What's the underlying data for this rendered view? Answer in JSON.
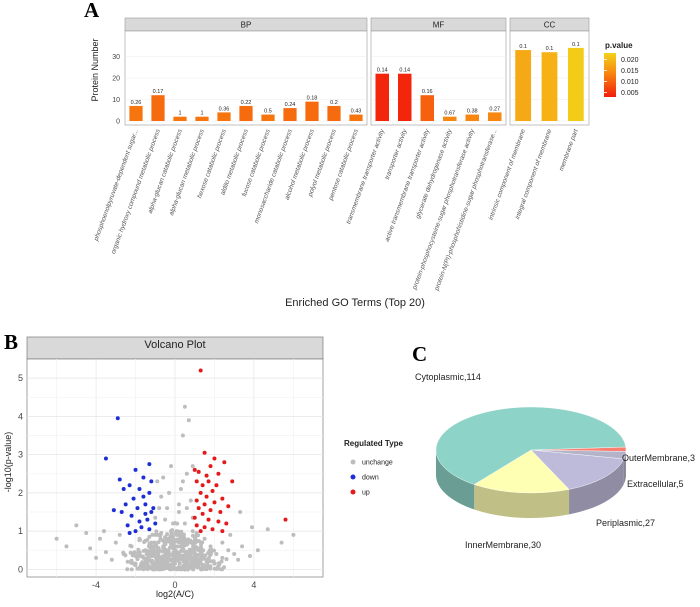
{
  "panel_labels": {
    "a": "A",
    "b": "B",
    "c": "C"
  },
  "chart_data": [
    {
      "type": "bar",
      "title": "",
      "xlabel": "Enriched GO Terms (Top 20)",
      "ylabel": "Protein Number",
      "ylim": [
        0,
        40
      ],
      "yticks": [
        0,
        10,
        20,
        30
      ],
      "facets": [
        {
          "name": "BP",
          "categories": [
            "phosphoenolpyruvate-dependent sugar...",
            "organic hydroxy compound metabolic process",
            "alpha-glucan catabolic process",
            "alpha-glucan metabolic process",
            "hexose catabolic process",
            "aldito metabolic process",
            "fucose catabolic process",
            "monosaccharide catabolic process",
            "alcohol metabolic process",
            "polyol metabolic process",
            "pentose catabolic process"
          ],
          "values": [
            7,
            12,
            2,
            2,
            4,
            7,
            3,
            6,
            9,
            7,
            3
          ],
          "labels": [
            "0.26",
            "0.17",
            "1",
            "1",
            "0.36",
            "0.22",
            "0.5",
            "0.24",
            "0.18",
            "0.2",
            "0.43"
          ],
          "p_values": [
            0.012,
            0.011,
            0.012,
            0.012,
            0.012,
            0.011,
            0.012,
            0.011,
            0.011,
            0.011,
            0.012
          ]
        },
        {
          "name": "MF",
          "categories": [
            "transmembrane transporter activity",
            "transporter activity",
            "active transmembrane transporter activity",
            "glycerate dehydrogenase activity",
            "protein-phosphocysteine-sugar phosphotransferase activity",
            "protein-N(PI)-phosphohistidine-sugar phosphotransferase..."
          ],
          "values": [
            22,
            22,
            12,
            2,
            3,
            4
          ],
          "labels": [
            "0.14",
            "0.14",
            "0.16",
            "0.67",
            "0.38",
            "0.27"
          ],
          "p_values": [
            0.004,
            0.004,
            0.01,
            0.014,
            0.014,
            0.014
          ]
        },
        {
          "name": "CC",
          "categories": [
            "intrinsic component of membrane",
            "integral component of membrane",
            "membrane part"
          ],
          "values": [
            33,
            32,
            34
          ],
          "labels": [
            "0.1",
            "0.1",
            "0.1"
          ],
          "p_values": [
            0.018,
            0.019,
            0.022
          ]
        }
      ],
      "legend": {
        "title": "p.value",
        "ticks": [
          "0.020",
          "0.015",
          "0.010",
          "0.005"
        ],
        "tick_values": [
          0.02,
          0.015,
          0.01,
          0.005
        ],
        "range": [
          0.003,
          0.023
        ],
        "position": "right"
      }
    },
    {
      "type": "scatter",
      "title": "Volcano Plot",
      "xlabel": "log2(A/C)",
      "ylabel": "-log10(p-value)",
      "xlim": [
        -7.5,
        7.5
      ],
      "ylim": [
        -0.2,
        5.5
      ],
      "xticks": [
        "-4",
        "0",
        "4"
      ],
      "xtick_values": [
        -4,
        0,
        4
      ],
      "yticks": [
        "0",
        "1",
        "2",
        "3",
        "4",
        "5"
      ],
      "legend": {
        "title": "Regulated Type",
        "position": "right",
        "entries": [
          {
            "name": "unchange",
            "color": "#bdbdbd"
          },
          {
            "name": "down",
            "color": "#1f2fd6"
          },
          {
            "name": "up",
            "color": "#e31a1c"
          }
        ]
      },
      "series": [
        {
          "name": "down",
          "color": "#1f2fd6",
          "points": [
            [
              -2.9,
              3.95
            ],
            [
              -3.5,
              2.9
            ],
            [
              -1.3,
              2.75
            ],
            [
              -2.8,
              2.35
            ],
            [
              -2.6,
              2.1
            ],
            [
              -2.3,
              2.2
            ],
            [
              -1.8,
              2.1
            ],
            [
              -1.3,
              2.0
            ],
            [
              -2.1,
              1.85
            ],
            [
              -1.6,
              1.9
            ],
            [
              -2.5,
              1.7
            ],
            [
              -1.9,
              1.6
            ],
            [
              -1.5,
              1.7
            ],
            [
              -1.2,
              1.5
            ],
            [
              -2.7,
              1.5
            ],
            [
              -2.2,
              1.4
            ],
            [
              -1.4,
              1.3
            ],
            [
              -1.1,
              1.6
            ],
            [
              -1.0,
              1.2
            ],
            [
              -2.4,
              1.15
            ],
            [
              -1.8,
              1.25
            ],
            [
              -3.1,
              1.55
            ],
            [
              -1.6,
              2.4
            ],
            [
              -2.0,
              2.6
            ],
            [
              -1.2,
              2.3
            ],
            [
              -1.7,
              1.1
            ],
            [
              -1.3,
              1.05
            ],
            [
              -2.0,
              1.0
            ],
            [
              -1.5,
              1.45
            ],
            [
              -2.3,
              0.95
            ]
          ]
        },
        {
          "name": "up",
          "color": "#e31a1c",
          "points": [
            [
              1.3,
              5.2
            ],
            [
              1.5,
              3.05
            ],
            [
              2.0,
              2.9
            ],
            [
              2.5,
              2.8
            ],
            [
              1.8,
              2.7
            ],
            [
              1.2,
              2.55
            ],
            [
              1.6,
              2.45
            ],
            [
              2.2,
              2.5
            ],
            [
              1.1,
              2.3
            ],
            [
              1.4,
              2.2
            ],
            [
              2.1,
              2.2
            ],
            [
              2.9,
              2.3
            ],
            [
              1.9,
              2.05
            ],
            [
              1.3,
              2.0
            ],
            [
              1.6,
              1.9
            ],
            [
              2.4,
              1.85
            ],
            [
              1.1,
              1.8
            ],
            [
              2.0,
              1.75
            ],
            [
              1.5,
              1.7
            ],
            [
              2.7,
              1.65
            ],
            [
              1.2,
              1.6
            ],
            [
              1.8,
              1.55
            ],
            [
              2.3,
              1.5
            ],
            [
              1.4,
              1.45
            ],
            [
              1.0,
              1.35
            ],
            [
              1.7,
              1.3
            ],
            [
              2.2,
              1.25
            ],
            [
              2.6,
              1.2
            ],
            [
              1.1,
              1.15
            ],
            [
              1.5,
              1.1
            ],
            [
              1.9,
              1.05
            ],
            [
              2.4,
              1.0
            ],
            [
              1.3,
              1.0
            ],
            [
              5.6,
              1.3
            ],
            [
              1.0,
              2.6
            ],
            [
              1.7,
              2.3
            ]
          ]
        },
        {
          "name": "unchange",
          "color": "#bdbdbd",
          "points": [
            [
              0.5,
              4.25
            ],
            [
              0.7,
              3.9
            ],
            [
              0.4,
              3.5
            ],
            [
              -0.6,
              2.4
            ],
            [
              -0.3,
              2.0
            ],
            [
              0.3,
              2.1
            ],
            [
              0.9,
              2.7
            ],
            [
              -0.9,
              2.3
            ],
            [
              0.6,
              2.5
            ],
            [
              0.8,
              1.8
            ],
            [
              -0.8,
              1.6
            ],
            [
              -0.5,
              1.3
            ],
            [
              0.2,
              1.5
            ],
            [
              0.5,
              1.2
            ],
            [
              -0.2,
              1.0
            ],
            [
              0.1,
              0.9
            ],
            [
              -0.7,
              0.95
            ],
            [
              0.9,
              1.0
            ],
            [
              3.3,
              1.5
            ],
            [
              3.9,
              1.1
            ],
            [
              4.7,
              1.05
            ],
            [
              -4.5,
              0.95
            ],
            [
              -5.0,
              1.15
            ],
            [
              -5.5,
              0.6
            ],
            [
              -4.3,
              0.55
            ],
            [
              -3.8,
              0.8
            ],
            [
              -3.5,
              0.45
            ],
            [
              -3.0,
              0.7
            ],
            [
              -2.6,
              0.4
            ],
            [
              -2.2,
              0.6
            ],
            [
              -1.8,
              0.8
            ],
            [
              -1.5,
              0.5
            ],
            [
              -1.2,
              0.7
            ],
            [
              -0.9,
              0.5
            ],
            [
              -0.6,
              0.6
            ],
            [
              -0.3,
              0.4
            ],
            [
              0.0,
              0.5
            ],
            [
              0.3,
              0.6
            ],
            [
              0.6,
              0.45
            ],
            [
              0.9,
              0.7
            ],
            [
              1.2,
              0.5
            ],
            [
              1.5,
              0.8
            ],
            [
              1.8,
              0.6
            ],
            [
              2.1,
              0.4
            ],
            [
              2.4,
              0.7
            ],
            [
              2.7,
              0.5
            ],
            [
              3.0,
              0.4
            ],
            [
              3.4,
              0.6
            ],
            [
              3.8,
              0.35
            ],
            [
              4.2,
              0.5
            ],
            [
              -4.0,
              0.3
            ],
            [
              -3.2,
              0.25
            ],
            [
              -2.4,
              0.2
            ],
            [
              -1.6,
              0.3
            ],
            [
              -0.8,
              0.2
            ],
            [
              0.0,
              0.15
            ],
            [
              0.8,
              0.25
            ],
            [
              1.6,
              0.2
            ],
            [
              2.4,
              0.3
            ],
            [
              3.2,
              0.25
            ],
            [
              -1.0,
              0.1
            ],
            [
              -0.5,
              0.05
            ],
            [
              0.5,
              0.08
            ],
            [
              1.0,
              0.12
            ],
            [
              -0.2,
              0.02
            ],
            [
              0.2,
              0.04
            ],
            [
              6.0,
              0.9
            ],
            [
              5.4,
              0.7
            ],
            [
              -6.0,
              0.8
            ],
            [
              -2.0,
              0.15
            ],
            [
              2.0,
              0.15
            ],
            [
              -0.4,
              0.8
            ],
            [
              0.4,
              0.9
            ],
            [
              -1.0,
              0.9
            ],
            [
              1.1,
              0.95
            ],
            [
              -1.3,
              0.85
            ],
            [
              -0.1,
              1.2
            ],
            [
              0.2,
              1.7
            ],
            [
              -0.4,
              1.6
            ],
            [
              0.6,
              1.6
            ],
            [
              -0.7,
              1.9
            ],
            [
              0.4,
              2.3
            ],
            [
              -0.2,
              2.7
            ],
            [
              -1.0,
              1.35
            ],
            [
              0.9,
              1.35
            ],
            [
              -2.8,
              0.9
            ],
            [
              2.8,
              0.9
            ],
            [
              -3.6,
              1.0
            ]
          ]
        }
      ]
    },
    {
      "type": "pie",
      "title": "",
      "labels": [
        "Cytoplasmic,114",
        "InnerMembrane,30",
        "Periplasmic,27",
        "Extracellular,5",
        "OuterMembrane,3"
      ],
      "names": [
        "Cytoplasmic",
        "InnerMembrane",
        "Periplasmic",
        "Extracellular",
        "OuterMembrane"
      ],
      "values": [
        114,
        30,
        27,
        5,
        3
      ],
      "colors": [
        "#8dd3c7",
        "#ffffb3",
        "#bebada",
        "#b3b3c9",
        "#fb8072"
      ],
      "style": "3d"
    }
  ]
}
